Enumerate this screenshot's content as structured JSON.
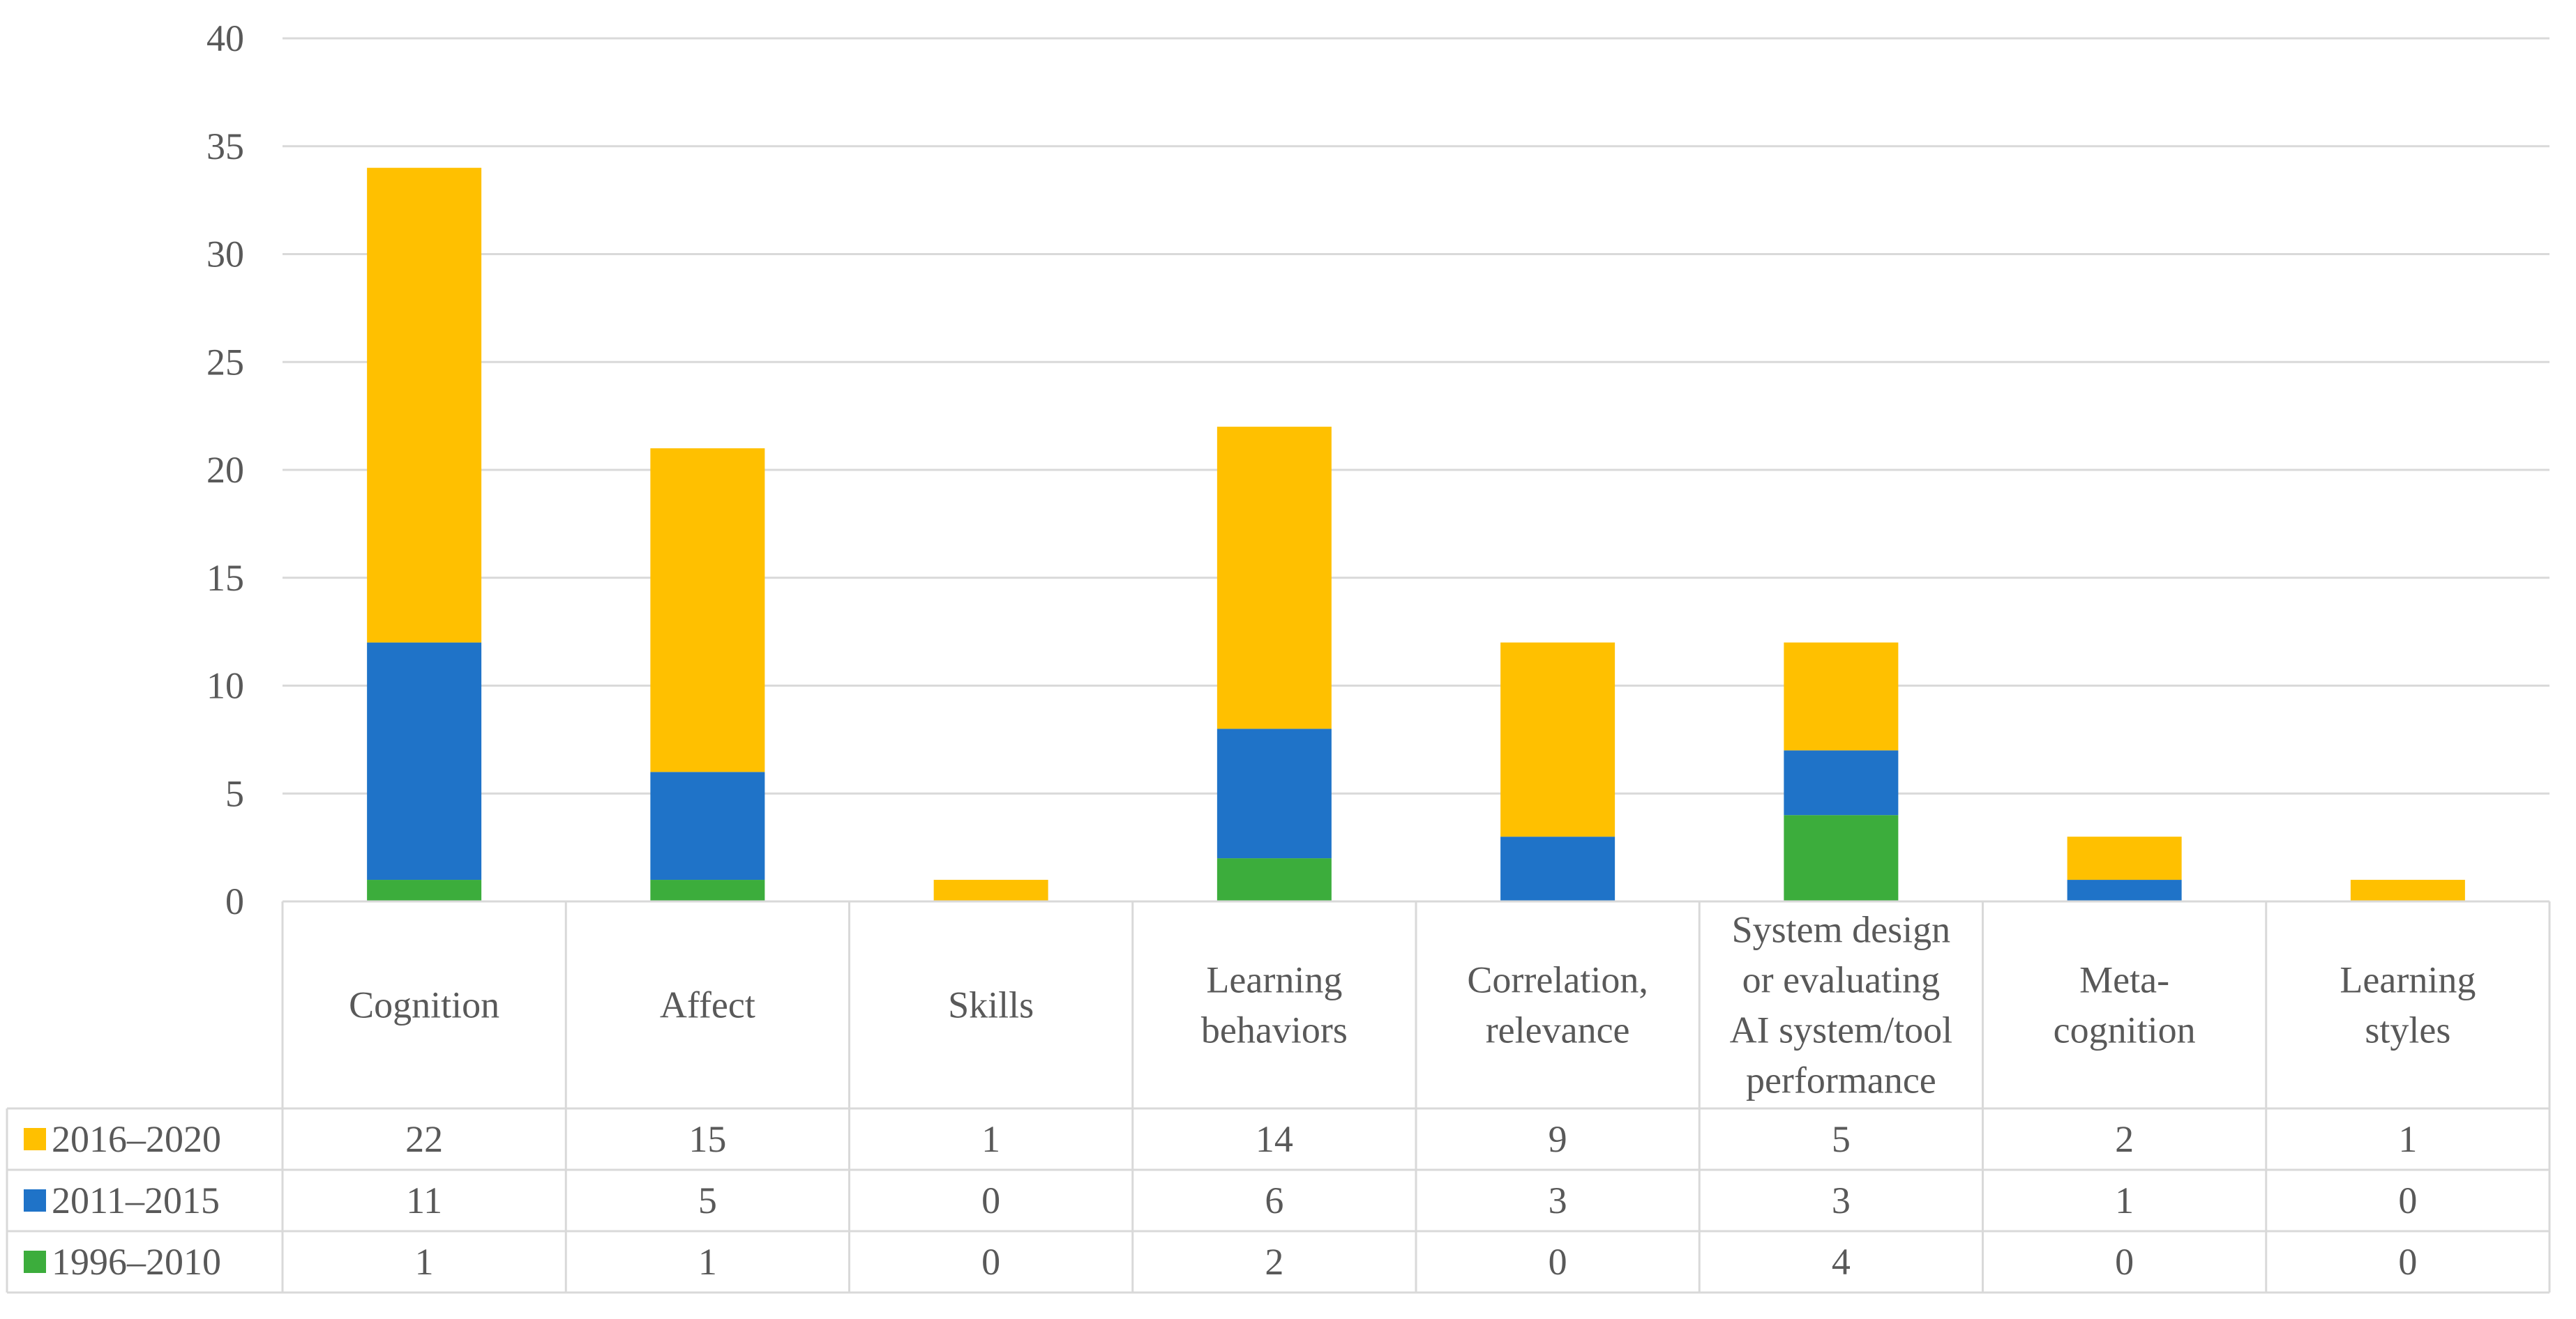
{
  "chart_data": {
    "type": "bar",
    "stacked": true,
    "title": "",
    "xlabel": "",
    "ylabel": "",
    "ylim": [
      0,
      40
    ],
    "yticks": [
      "0",
      "5",
      "10",
      "15",
      "20",
      "25",
      "30",
      "35",
      "40"
    ],
    "categories": [
      [
        "Cognition"
      ],
      [
        "Affect"
      ],
      [
        "Skills"
      ],
      [
        "Learning",
        "behaviors"
      ],
      [
        "Correlation,",
        "relevance"
      ],
      [
        "System design",
        "or evaluating",
        "AI system/tool",
        "performance"
      ],
      [
        "Meta-",
        "cognition"
      ],
      [
        "Learning",
        "styles"
      ]
    ],
    "series": [
      {
        "name": "1996–2010",
        "color": "#3cad3c",
        "values": [
          1,
          1,
          0,
          2,
          0,
          4,
          0,
          0
        ]
      },
      {
        "name": "2011–2015",
        "color": "#1f73c8",
        "values": [
          11,
          5,
          0,
          6,
          3,
          3,
          1,
          0
        ]
      },
      {
        "name": "2016–2020",
        "color": "#ffc000",
        "values": [
          22,
          15,
          1,
          14,
          9,
          5,
          2,
          1
        ]
      }
    ],
    "table_row_order": [
      "2016–2020",
      "2011–2015",
      "1996–2010"
    ],
    "gridlines": true,
    "data_table": true
  }
}
